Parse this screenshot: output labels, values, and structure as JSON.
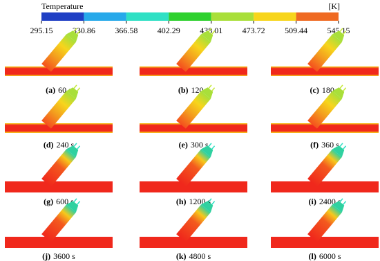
{
  "colorbar": {
    "title": "Temperature",
    "unit": "[K]",
    "ticks": [
      "295.15",
      "330.86",
      "366.58",
      "402.29",
      "438.01",
      "473.72",
      "509.44",
      "545.15"
    ],
    "colors": [
      "#1f3fc4",
      "#27a9ea",
      "#2fe0c4",
      "#2fd12f",
      "#a9df3a",
      "#f7d51c",
      "#ef6a22"
    ]
  },
  "panels": [
    {
      "label": "(a)",
      "time": "60 s"
    },
    {
      "label": "(b)",
      "time": "120 s"
    },
    {
      "label": "(c)",
      "time": "180 s"
    },
    {
      "label": "(d)",
      "time": "240 s"
    },
    {
      "label": "(e)",
      "time": "300 s"
    },
    {
      "label": "(f)",
      "time": "360 s"
    },
    {
      "label": "(g)",
      "time": "600 s"
    },
    {
      "label": "(h)",
      "time": "1200 s"
    },
    {
      "label": "(i)",
      "time": "2400 s"
    },
    {
      "label": "(j)",
      "time": "3600 s"
    },
    {
      "label": "(k)",
      "time": "4800 s"
    },
    {
      "label": "(l)",
      "time": "6000 s"
    }
  ]
}
